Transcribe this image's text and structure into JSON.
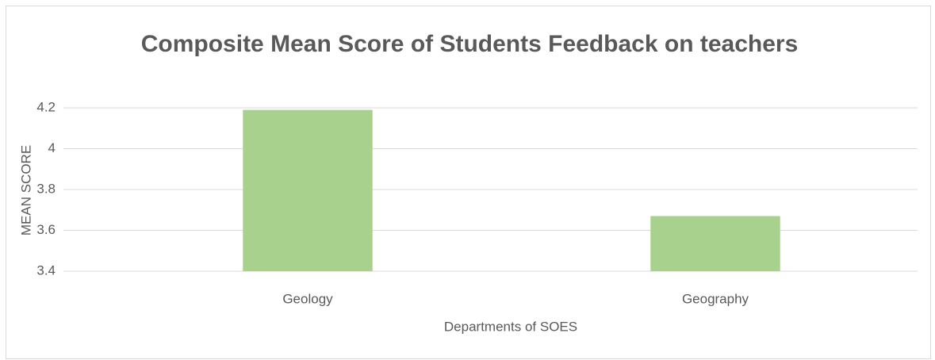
{
  "chart_data": {
    "type": "bar",
    "title": "Composite Mean Score of Students Feedback on teachers",
    "x_label": "Departments of SOES",
    "y_label": "MEAN SCORE",
    "categories": [
      "Geology",
      "Geography"
    ],
    "values": [
      4.19,
      3.67
    ],
    "color": "#a9d18e",
    "ylim": [
      3.4,
      4.2
    ],
    "yticks": [
      3.4,
      3.6,
      3.8,
      4,
      4.2
    ],
    "grid": true
  }
}
